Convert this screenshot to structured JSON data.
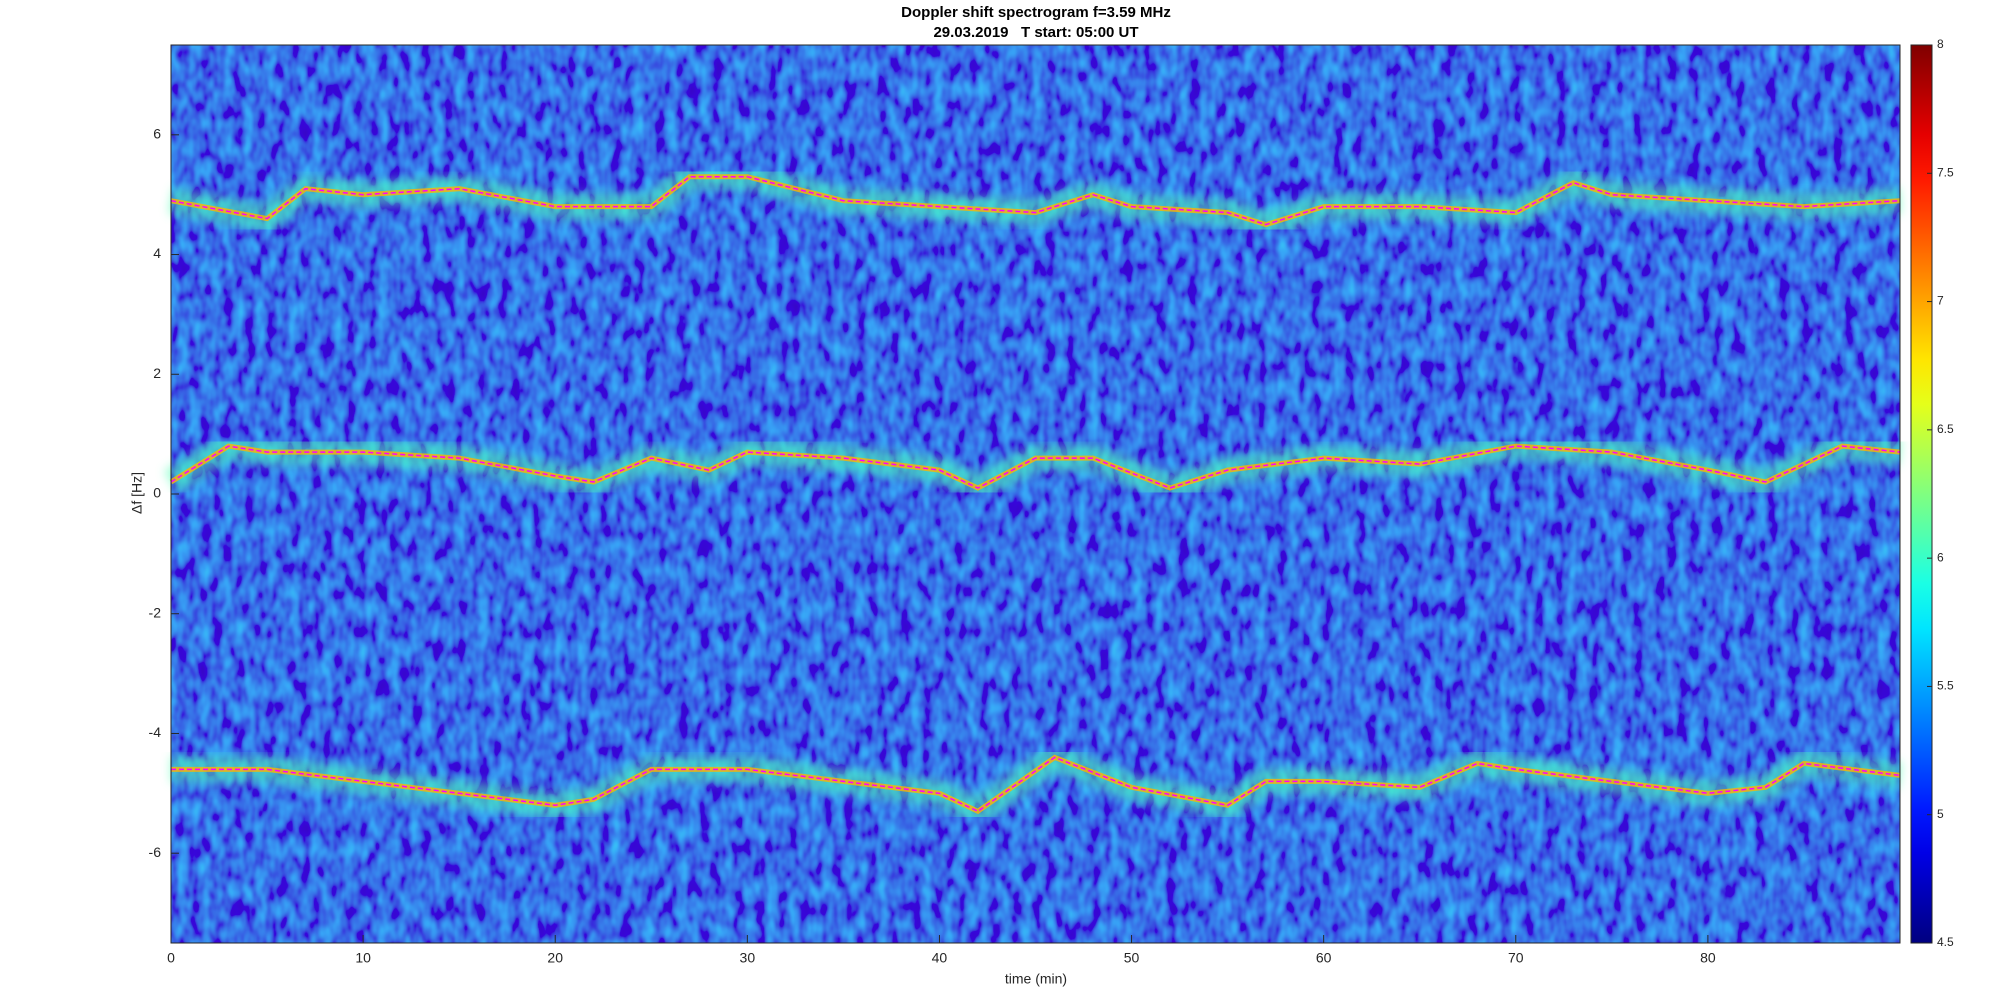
{
  "chart_data": {
    "type": "spectrogram",
    "title": "Doppler shift spectrogram f=3.59 MHz",
    "subtitle": "29.03.2019   T start: 05:00 UT",
    "xlabel": "time (min)",
    "ylabel": "Δf [Hz]",
    "xlim": [
      0,
      90
    ],
    "xticks": [
      0,
      10,
      20,
      30,
      40,
      50,
      60,
      70,
      80
    ],
    "ylim": [
      -7.5,
      7.5
    ],
    "yticks": [
      -6,
      -4,
      -2,
      0,
      2,
      4,
      6
    ],
    "grid": false,
    "colorbar": {
      "clim": [
        4.5,
        8
      ],
      "ticks": [
        4.5,
        5,
        5.5,
        6,
        6.5,
        7,
        7.5,
        8
      ],
      "colormap": "jet"
    },
    "series": [
      {
        "color": "#ff00ff",
        "x": [
          0,
          5,
          7,
          10,
          15,
          20,
          25,
          27,
          30,
          35,
          40,
          45,
          48,
          50,
          55,
          57,
          60,
          65,
          70,
          73,
          75,
          80,
          85,
          90
        ],
        "values": [
          4.9,
          4.6,
          5.1,
          5.0,
          5.1,
          4.8,
          4.8,
          5.3,
          5.3,
          4.9,
          4.8,
          4.7,
          5.0,
          4.8,
          4.7,
          4.5,
          4.8,
          4.8,
          4.7,
          5.2,
          5.0,
          4.9,
          4.8,
          4.9
        ]
      },
      {
        "color": "#ff00ff",
        "x": [
          0,
          3,
          5,
          10,
          15,
          20,
          22,
          25,
          28,
          30,
          35,
          40,
          42,
          45,
          48,
          52,
          55,
          60,
          65,
          70,
          75,
          80,
          83,
          85,
          87,
          90
        ],
        "values": [
          0.2,
          0.8,
          0.7,
          0.7,
          0.6,
          0.3,
          0.2,
          0.6,
          0.4,
          0.7,
          0.6,
          0.4,
          0.1,
          0.6,
          0.6,
          0.1,
          0.4,
          0.6,
          0.5,
          0.8,
          0.7,
          0.4,
          0.2,
          0.5,
          0.8,
          0.7
        ]
      },
      {
        "color": "#ff00ff",
        "x": [
          0,
          5,
          10,
          15,
          20,
          22,
          25,
          30,
          35,
          40,
          42,
          46,
          50,
          55,
          57,
          60,
          65,
          68,
          70,
          75,
          80,
          83,
          85,
          90
        ],
        "values": [
          -4.6,
          -4.6,
          -4.8,
          -5.0,
          -5.2,
          -5.1,
          -4.6,
          -4.6,
          -4.8,
          -5.0,
          -5.3,
          -4.4,
          -4.9,
          -5.2,
          -4.8,
          -4.8,
          -4.9,
          -4.5,
          -4.6,
          -4.8,
          -5.0,
          -4.9,
          -4.5,
          -4.7
        ]
      }
    ]
  }
}
